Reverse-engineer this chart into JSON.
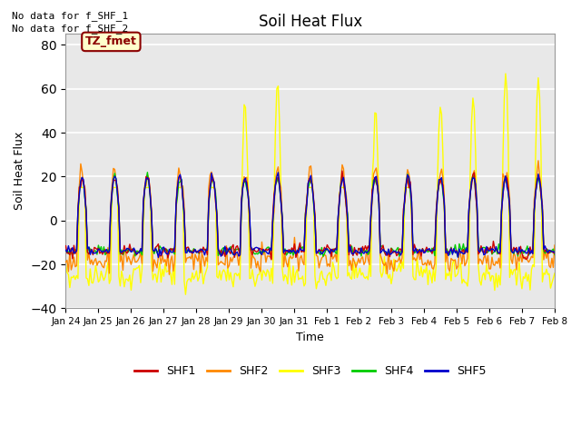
{
  "title": "Soil Heat Flux",
  "xlabel": "Time",
  "ylabel": "Soil Heat Flux",
  "ylim": [
    -40,
    85
  ],
  "yticks": [
    -40,
    -20,
    0,
    20,
    40,
    60,
    80
  ],
  "note1": "No data for f_SHF_1",
  "note2": "No data for f_SHF_2",
  "tz_label": "TZ_fmet",
  "legend_labels": [
    "SHF1",
    "SHF2",
    "SHF3",
    "SHF4",
    "SHF5"
  ],
  "legend_colors": [
    "#cc0000",
    "#ff8800",
    "#ffff00",
    "#00cc00",
    "#0000cc"
  ],
  "bg_color": "#e8e8e8",
  "x_tick_labels": [
    "Jan 24",
    "Jan 25",
    "Jan 26",
    "Jan 27",
    "Jan 28",
    "Jan 29",
    "Jan 30",
    "Jan 31",
    "Feb 1",
    "Feb 2",
    "Feb 3",
    "Feb 4",
    "Feb 5",
    "Feb 6",
    "Feb 7",
    "Feb 8"
  ],
  "grid_color": "white",
  "spine_color": "#999999"
}
